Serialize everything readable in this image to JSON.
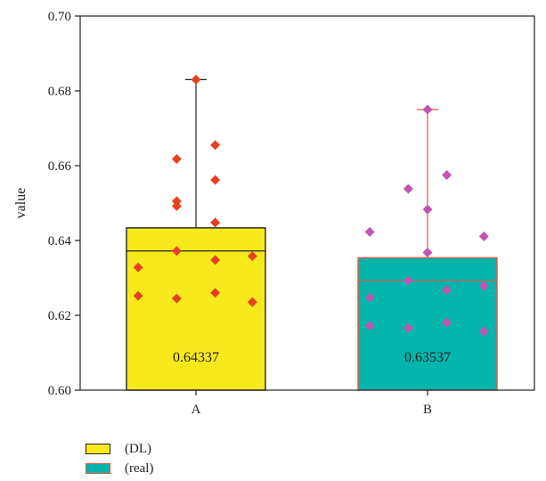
{
  "chart_data": {
    "type": "bar",
    "ylabel": "value",
    "xlabel": "",
    "ylim": [
      0.6,
      0.7
    ],
    "yticks": [
      "0.60",
      "0.62",
      "0.64",
      "0.66",
      "0.68",
      "0.70"
    ],
    "categories": [
      "A",
      "B"
    ],
    "grid": false,
    "legend_placement": "bottom-left",
    "series": [
      {
        "name": "(DL)",
        "category": "A",
        "value": 0.64337,
        "value_label": "0.64337",
        "median": 0.6372,
        "whisker_max": 0.683,
        "fill_color": "#f7e91c",
        "edge_color": "#222222",
        "point_color": "#e8401e",
        "points": [
          {
            "y": 0.683,
            "offset": 0.0
          },
          {
            "y": 0.6655,
            "offset": 0.14
          },
          {
            "y": 0.6618,
            "offset": -0.14
          },
          {
            "y": 0.6562,
            "offset": 0.14
          },
          {
            "y": 0.6505,
            "offset": -0.14
          },
          {
            "y": 0.6492,
            "offset": -0.14
          },
          {
            "y": 0.6448,
            "offset": 0.14
          },
          {
            "y": 0.6372,
            "offset": -0.14
          },
          {
            "y": 0.6358,
            "offset": 0.41
          },
          {
            "y": 0.6348,
            "offset": 0.14
          },
          {
            "y": 0.6328,
            "offset": -0.42
          },
          {
            "y": 0.626,
            "offset": 0.14
          },
          {
            "y": 0.6252,
            "offset": -0.42
          },
          {
            "y": 0.6245,
            "offset": -0.14
          },
          {
            "y": 0.6235,
            "offset": 0.41
          }
        ]
      },
      {
        "name": "(real)",
        "category": "B",
        "value": 0.63537,
        "value_label": "0.63537",
        "median": 0.6293,
        "whisker_max": 0.675,
        "fill_color": "#03b5ad",
        "edge_color": "#e8553c",
        "point_color": "#c254b6",
        "points": [
          {
            "y": 0.675,
            "offset": 0.0
          },
          {
            "y": 0.6575,
            "offset": 0.14
          },
          {
            "y": 0.6538,
            "offset": -0.14
          },
          {
            "y": 0.6483,
            "offset": 0.0
          },
          {
            "y": 0.6423,
            "offset": -0.42
          },
          {
            "y": 0.6411,
            "offset": 0.41
          },
          {
            "y": 0.6368,
            "offset": 0.0
          },
          {
            "y": 0.6293,
            "offset": -0.14
          },
          {
            "y": 0.6278,
            "offset": 0.41
          },
          {
            "y": 0.6268,
            "offset": 0.14
          },
          {
            "y": 0.6248,
            "offset": -0.42
          },
          {
            "y": 0.6181,
            "offset": 0.14
          },
          {
            "y": 0.6172,
            "offset": -0.42
          },
          {
            "y": 0.6166,
            "offset": -0.14
          },
          {
            "y": 0.6157,
            "offset": 0.41
          }
        ]
      }
    ]
  }
}
